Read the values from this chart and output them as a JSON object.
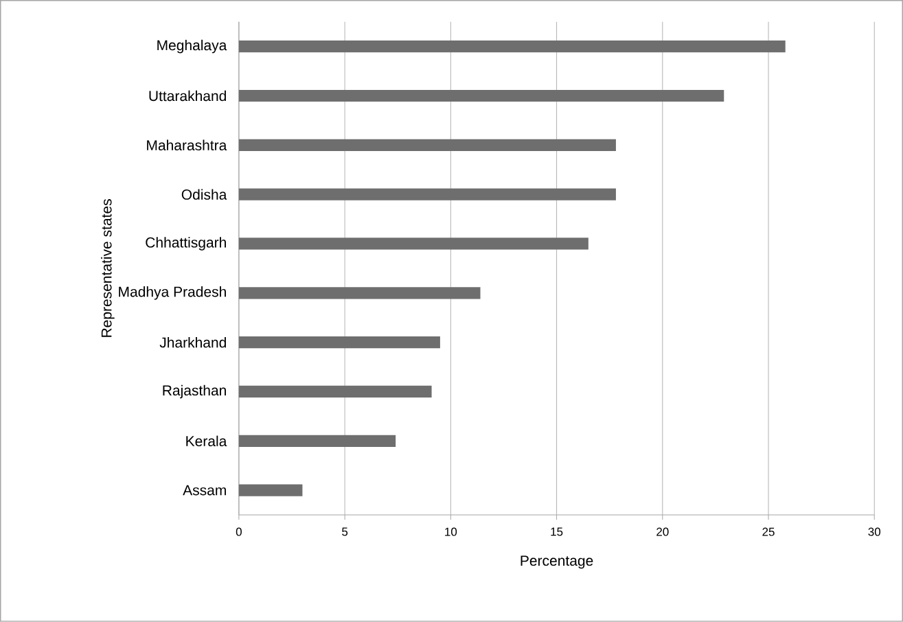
{
  "chart_data": {
    "type": "bar",
    "orientation": "horizontal",
    "categories": [
      "Meghalaya",
      "Uttarakhand",
      "Maharashtra",
      "Odisha",
      "Chhattisgarh",
      "Madhya Pradesh",
      "Jharkhand",
      "Rajasthan",
      "Kerala",
      "Assam"
    ],
    "values": [
      25.8,
      22.9,
      17.8,
      17.8,
      16.5,
      11.4,
      9.5,
      9.1,
      7.4,
      3.0
    ],
    "color": "#6e6e6e",
    "xlim": [
      0,
      30
    ],
    "xticks": [
      0,
      5,
      10,
      15,
      20,
      25,
      30
    ],
    "xlabel": "Percentage",
    "ylabel": "Representative states",
    "grid": "x"
  }
}
